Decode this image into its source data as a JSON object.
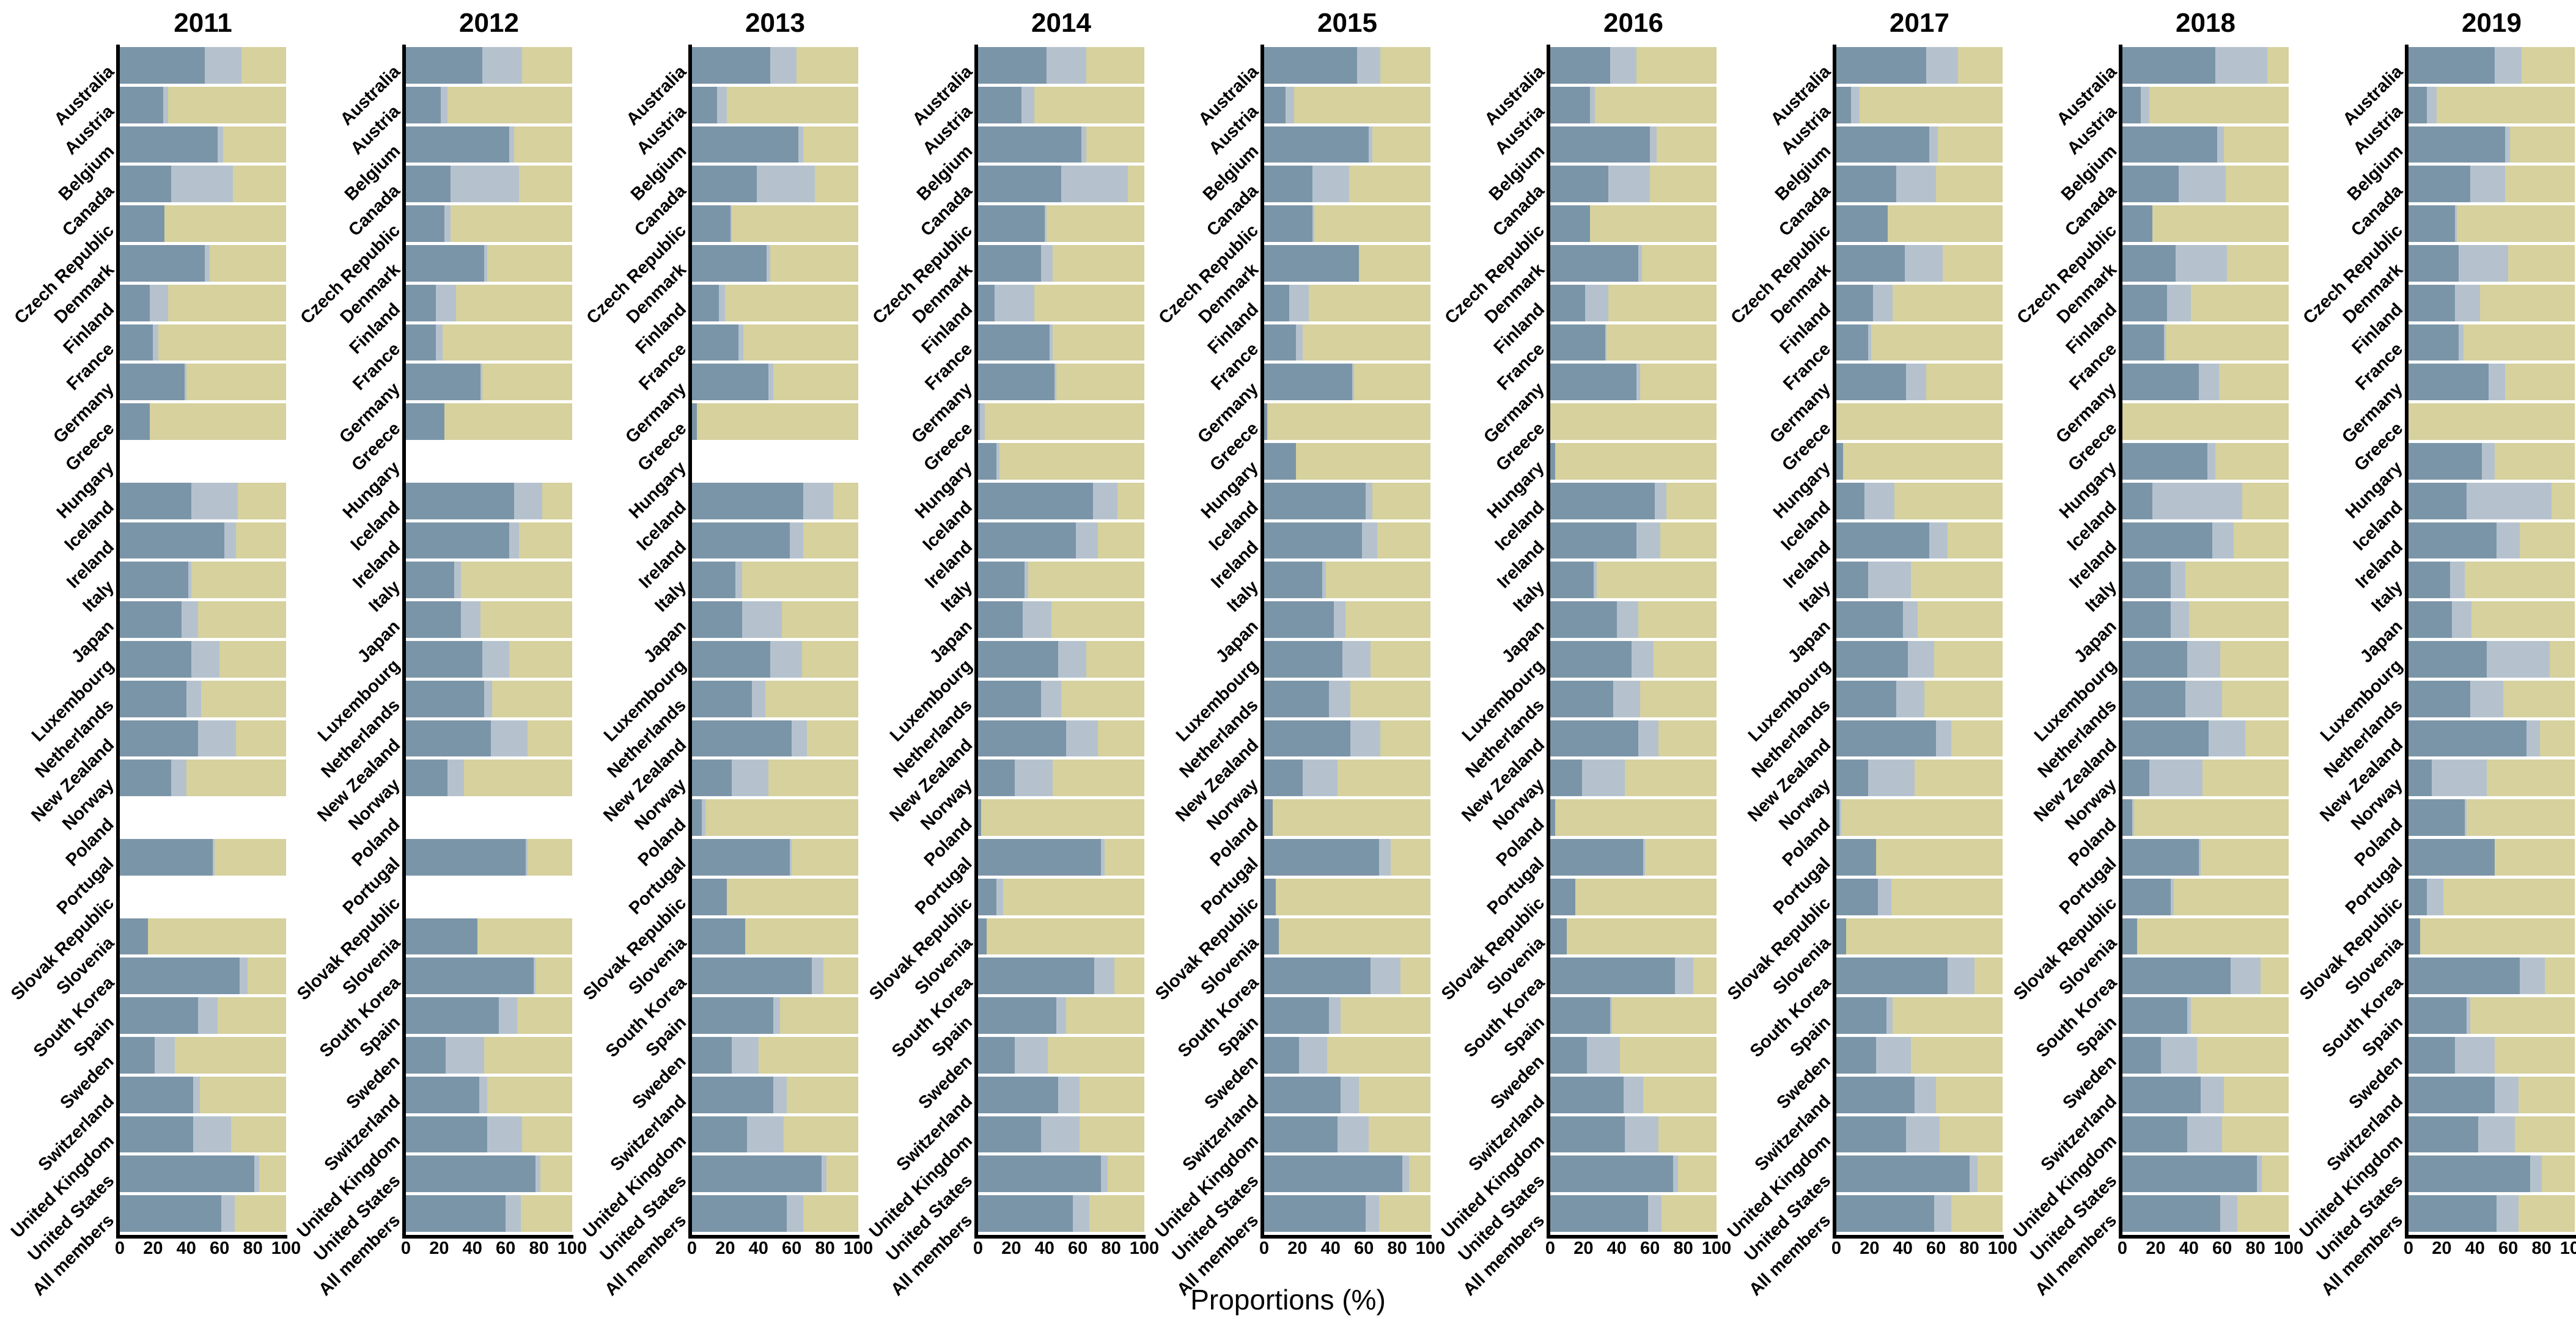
{
  "figure": {
    "x_axis_title": "Proportions (%)"
  },
  "colors": {
    "segment_dark": "#7b95a8",
    "segment_light": "#b5c2ce",
    "segment_tan": "#d6d19d",
    "axis": "#000000",
    "background": "#ffffff"
  },
  "chart_data": {
    "type": "bar",
    "orientation": "horizontal",
    "stacked": true,
    "title": "",
    "xlabel": "Proportions (%)",
    "ylabel": "",
    "xlim": [
      0,
      100
    ],
    "x_ticks": [
      0,
      20,
      40,
      60,
      80,
      100
    ],
    "grid": false,
    "legend": "none",
    "panels": [
      "2011",
      "2012",
      "2013",
      "2014",
      "2015",
      "2016",
      "2017",
      "2018",
      "2019"
    ],
    "categories": [
      "Australia",
      "Austria",
      "Belgium",
      "Canada",
      "Czech Republic",
      "Denmark",
      "Finland",
      "France",
      "Germany",
      "Greece",
      "Hungary",
      "Iceland",
      "Ireland",
      "Italy",
      "Japan",
      "Luxembourg",
      "Netherlands",
      "New Zealand",
      "Norway",
      "Poland",
      "Portugal",
      "Slovak Republic",
      "Slovenia",
      "South Korea",
      "Spain",
      "Sweden",
      "Switzerland",
      "United Kingdom",
      "United States",
      "All members"
    ],
    "segment_order": [
      "dark",
      "light",
      "tan"
    ],
    "note": "values are [dark%, light%]; tan fills remainder to 100; null = no bar drawn",
    "values": {
      "2011": [
        [
          51,
          22
        ],
        [
          26,
          3
        ],
        [
          59,
          3
        ],
        [
          31,
          37
        ],
        [
          27,
          0
        ],
        [
          51,
          3
        ],
        [
          18,
          11
        ],
        [
          20,
          3
        ],
        [
          39,
          1
        ],
        [
          18,
          0
        ],
        null,
        [
          43,
          28
        ],
        [
          63,
          7
        ],
        [
          41,
          2
        ],
        [
          37,
          10
        ],
        [
          43,
          17
        ],
        [
          40,
          9
        ],
        [
          47,
          23
        ],
        [
          31,
          9
        ],
        null,
        [
          56,
          1
        ],
        null,
        [
          17,
          0
        ],
        [
          72,
          5
        ],
        [
          47,
          12
        ],
        [
          21,
          12
        ],
        [
          44,
          4
        ],
        [
          44,
          23
        ],
        [
          81,
          3
        ],
        [
          61,
          8
        ]
      ],
      "2012": [
        [
          46,
          24
        ],
        [
          21,
          4
        ],
        [
          62,
          3
        ],
        [
          27,
          41
        ],
        [
          23,
          4
        ],
        [
          47,
          2
        ],
        [
          18,
          12
        ],
        [
          18,
          4
        ],
        [
          45,
          1
        ],
        [
          23,
          0
        ],
        null,
        [
          65,
          17
        ],
        [
          62,
          6
        ],
        [
          29,
          4
        ],
        [
          33,
          12
        ],
        [
          46,
          16
        ],
        [
          47,
          5
        ],
        [
          51,
          22
        ],
        [
          25,
          10
        ],
        null,
        [
          72,
          1
        ],
        null,
        [
          43,
          0
        ],
        [
          77,
          1
        ],
        [
          56,
          11
        ],
        [
          24,
          23
        ],
        [
          44,
          5
        ],
        [
          49,
          21
        ],
        [
          78,
          3
        ],
        [
          60,
          9
        ]
      ],
      "2013": [
        [
          47,
          16
        ],
        [
          15,
          6
        ],
        [
          64,
          3
        ],
        [
          39,
          35
        ],
        [
          23,
          1
        ],
        [
          45,
          2
        ],
        [
          16,
          4
        ],
        [
          28,
          3
        ],
        [
          46,
          3
        ],
        [
          3,
          0
        ],
        null,
        [
          67,
          18
        ],
        [
          59,
          8
        ],
        [
          26,
          4
        ],
        [
          30,
          24
        ],
        [
          47,
          19
        ],
        [
          36,
          8
        ],
        [
          60,
          9
        ],
        [
          24,
          22
        ],
        [
          6,
          2
        ],
        [
          59,
          1
        ],
        [
          21,
          0
        ],
        [
          32,
          0
        ],
        [
          72,
          7
        ],
        [
          49,
          4
        ],
        [
          24,
          16
        ],
        [
          49,
          8
        ],
        [
          33,
          22
        ],
        [
          78,
          3
        ],
        [
          57,
          10
        ]
      ],
      "2014": [
        [
          41,
          24
        ],
        [
          26,
          8
        ],
        [
          62,
          3
        ],
        [
          50,
          40
        ],
        [
          40,
          1
        ],
        [
          38,
          7
        ],
        [
          10,
          24
        ],
        [
          43,
          2
        ],
        [
          46,
          1
        ],
        [
          1,
          3
        ],
        [
          11,
          2
        ],
        [
          69,
          15
        ],
        [
          59,
          13
        ],
        [
          28,
          2
        ],
        [
          27,
          17
        ],
        [
          48,
          17
        ],
        [
          38,
          12
        ],
        [
          53,
          19
        ],
        [
          22,
          23
        ],
        [
          2,
          0
        ],
        [
          74,
          2
        ],
        [
          11,
          4
        ],
        [
          5,
          0
        ],
        [
          70,
          12
        ],
        [
          47,
          6
        ],
        [
          22,
          20
        ],
        [
          48,
          13
        ],
        [
          38,
          23
        ],
        [
          74,
          4
        ],
        [
          57,
          10
        ]
      ],
      "2015": [
        [
          56,
          14
        ],
        [
          13,
          5
        ],
        [
          63,
          2
        ],
        [
          29,
          22
        ],
        [
          29,
          1
        ],
        [
          57,
          0
        ],
        [
          15,
          12
        ],
        [
          19,
          4
        ],
        [
          53,
          1
        ],
        [
          2,
          0
        ],
        [
          19,
          0
        ],
        [
          61,
          4
        ],
        [
          59,
          9
        ],
        [
          35,
          2
        ],
        [
          42,
          7
        ],
        [
          47,
          17
        ],
        [
          39,
          13
        ],
        [
          52,
          18
        ],
        [
          23,
          21
        ],
        [
          5,
          0
        ],
        [
          69,
          7
        ],
        [
          7,
          0
        ],
        [
          9,
          0
        ],
        [
          64,
          18
        ],
        [
          39,
          7
        ],
        [
          21,
          17
        ],
        [
          46,
          11
        ],
        [
          44,
          19
        ],
        [
          83,
          4
        ],
        [
          61,
          8
        ]
      ],
      "2016": [
        [
          36,
          16
        ],
        [
          24,
          3
        ],
        [
          60,
          4
        ],
        [
          35,
          25
        ],
        [
          24,
          0
        ],
        [
          53,
          2
        ],
        [
          21,
          14
        ],
        [
          33,
          1
        ],
        [
          52,
          2
        ],
        [
          0,
          0
        ],
        [
          3,
          0
        ],
        [
          63,
          7
        ],
        [
          52,
          14
        ],
        [
          26,
          2
        ],
        [
          40,
          13
        ],
        [
          49,
          13
        ],
        [
          38,
          16
        ],
        [
          53,
          12
        ],
        [
          19,
          26
        ],
        [
          3,
          0
        ],
        [
          56,
          1
        ],
        [
          15,
          0
        ],
        [
          10,
          0
        ],
        [
          75,
          11
        ],
        [
          36,
          1
        ],
        [
          22,
          20
        ],
        [
          44,
          12
        ],
        [
          45,
          20
        ],
        [
          74,
          3
        ],
        [
          59,
          8
        ]
      ],
      "2017": [
        [
          54,
          19
        ],
        [
          9,
          5
        ],
        [
          56,
          5
        ],
        [
          36,
          24
        ],
        [
          31,
          0
        ],
        [
          41,
          23
        ],
        [
          22,
          12
        ],
        [
          19,
          2
        ],
        [
          42,
          12
        ],
        [
          0,
          0
        ],
        [
          4,
          0
        ],
        [
          17,
          18
        ],
        [
          56,
          11
        ],
        [
          19,
          26
        ],
        [
          40,
          9
        ],
        [
          43,
          16
        ],
        [
          36,
          17
        ],
        [
          60,
          9
        ],
        [
          19,
          28
        ],
        [
          2,
          1
        ],
        [
          24,
          0
        ],
        [
          25,
          8
        ],
        [
          6,
          0
        ],
        [
          67,
          16
        ],
        [
          30,
          4
        ],
        [
          24,
          21
        ],
        [
          47,
          13
        ],
        [
          42,
          20
        ],
        [
          80,
          5
        ],
        [
          59,
          10
        ]
      ],
      "2018": [
        [
          56,
          31
        ],
        [
          11,
          5
        ],
        [
          57,
          4
        ],
        [
          34,
          28
        ],
        [
          18,
          0
        ],
        [
          32,
          31
        ],
        [
          27,
          14
        ],
        [
          25,
          1
        ],
        [
          46,
          12
        ],
        [
          0,
          0
        ],
        [
          51,
          5
        ],
        [
          18,
          54
        ],
        [
          54,
          13
        ],
        [
          29,
          9
        ],
        [
          29,
          11
        ],
        [
          39,
          20
        ],
        [
          38,
          22
        ],
        [
          52,
          22
        ],
        [
          16,
          32
        ],
        [
          6,
          1
        ],
        [
          46,
          1
        ],
        [
          29,
          2
        ],
        [
          9,
          0
        ],
        [
          65,
          18
        ],
        [
          39,
          2
        ],
        [
          23,
          22
        ],
        [
          47,
          14
        ],
        [
          39,
          21
        ],
        [
          81,
          3
        ],
        [
          59,
          10
        ]
      ],
      "2019": [
        [
          52,
          16
        ],
        [
          11,
          6
        ],
        [
          58,
          3
        ],
        [
          37,
          21
        ],
        [
          28,
          1
        ],
        [
          30,
          30
        ],
        [
          28,
          15
        ],
        [
          30,
          3
        ],
        [
          48,
          10
        ],
        [
          0,
          0
        ],
        [
          44,
          8
        ],
        [
          35,
          51
        ],
        [
          53,
          14
        ],
        [
          25,
          9
        ],
        [
          26,
          12
        ],
        [
          47,
          38
        ],
        [
          37,
          20
        ],
        [
          71,
          8
        ],
        [
          14,
          33
        ],
        [
          34,
          1
        ],
        [
          52,
          0
        ],
        [
          11,
          10
        ],
        [
          7,
          0
        ],
        [
          67,
          15
        ],
        [
          35,
          2
        ],
        [
          28,
          24
        ],
        [
          52,
          14
        ],
        [
          42,
          22
        ],
        [
          73,
          7
        ],
        [
          53,
          13
        ]
      ]
    }
  }
}
